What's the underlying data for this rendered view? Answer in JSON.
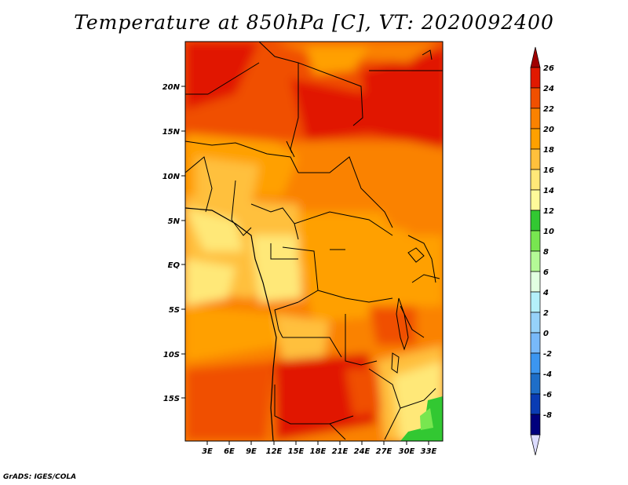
{
  "title": "Temperature at 850hPa [C], VT: 2020092400",
  "footer": "GrADS: IGES/COLA",
  "map": {
    "lat_ticks": [
      "20N",
      "15N",
      "10N",
      "5N",
      "EQ",
      "5S",
      "10S",
      "15S"
    ],
    "lon_ticks": [
      "3E",
      "6E",
      "9E",
      "12E",
      "15E",
      "18E",
      "21E",
      "24E",
      "27E",
      "30E",
      "33E"
    ]
  },
  "colorbar": {
    "levels": [
      "26",
      "24",
      "22",
      "20",
      "18",
      "16",
      "14",
      "12",
      "10",
      "8",
      "6",
      "4",
      "2",
      "0",
      "-2",
      "-4",
      "-6",
      "-8"
    ],
    "colors": [
      "#a00000",
      "#e11900",
      "#f05000",
      "#fa8200",
      "#ffa000",
      "#ffc03c",
      "#ffe878",
      "#fffa9a",
      "#32c832",
      "#78e650",
      "#b4fa96",
      "#e1ffe1",
      "#b4f0fa",
      "#96d2fa",
      "#78b9fa",
      "#3c96f0",
      "#1e6ec8",
      "#0a3cb4",
      "#00007d",
      "#dcdcff"
    ]
  }
}
